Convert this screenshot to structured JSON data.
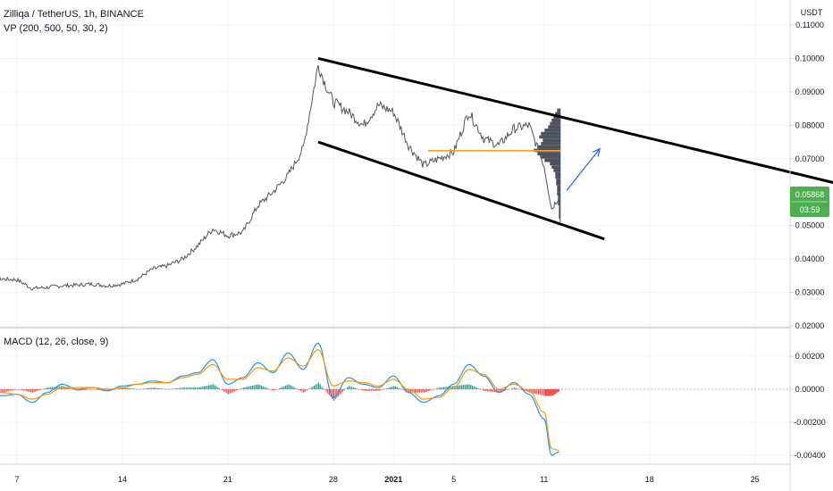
{
  "header": {
    "title": "Zilliqa / TetherUS, 1h, BINANCE",
    "vp_label": "VP (200, 500, 50, 30, 2)",
    "macd_label": "MACD (12, 26, close, 9)",
    "currency": "USDT"
  },
  "price_badge": {
    "value": "0.05868",
    "countdown": "03:59"
  },
  "colors": {
    "candle": "#555555",
    "channel": "#000000",
    "poc": "#f5a623",
    "vp": "#4c525e",
    "arrow": "#2962ff",
    "macd_line": "#2196f3",
    "signal_line": "#ff9800",
    "hist_pos": "#26a69a",
    "hist_neg": "#ef5350",
    "badge": "#4caf50"
  },
  "chart_data": [
    {
      "type": "line",
      "ylim": [
        0.02,
        0.11
      ],
      "price_ticks": [
        "0.11000",
        "0.10000",
        "0.09000",
        "0.08000",
        "0.07000",
        "0.05000",
        "0.04000",
        "0.03000",
        "0.02000"
      ],
      "x_ticks": [
        {
          "label": "7",
          "day": 7
        },
        {
          "label": "14",
          "day": 14
        },
        {
          "label": "21",
          "day": 21
        },
        {
          "label": "28",
          "day": 28
        },
        {
          "label": "2021",
          "day": 32
        },
        {
          "label": "5",
          "day": 36
        },
        {
          "label": "11",
          "day": 42
        },
        {
          "label": "18",
          "day": 49
        },
        {
          "label": "25",
          "day": 56
        }
      ],
      "series": [
        {
          "days": [
            4,
            5,
            6,
            7,
            8,
            9,
            10,
            11,
            12,
            13,
            14,
            15,
            16,
            17,
            18,
            19,
            20,
            21,
            22,
            23,
            24,
            25,
            26,
            27,
            27.5,
            28,
            29,
            30,
            31,
            32,
            33,
            34,
            35,
            36,
            37,
            38,
            39,
            40,
            41,
            42,
            42.5,
            43
          ],
          "close": [
            0.0345,
            0.0348,
            0.034,
            0.0338,
            0.0312,
            0.0315,
            0.032,
            0.0322,
            0.0325,
            0.032,
            0.0325,
            0.034,
            0.037,
            0.038,
            0.04,
            0.044,
            0.049,
            0.047,
            0.048,
            0.056,
            0.06,
            0.065,
            0.073,
            0.098,
            0.092,
            0.087,
            0.084,
            0.08,
            0.086,
            0.084,
            0.074,
            0.068,
            0.07,
            0.072,
            0.084,
            0.076,
            0.074,
            0.079,
            0.08,
            0.068,
            0.055,
            0.0587
          ]
        }
      ],
      "channel": {
        "upper": [
          {
            "day": 27,
            "price": 0.1
          },
          {
            "day": 62,
            "price": 0.062
          }
        ],
        "lower": [
          {
            "day": 27,
            "price": 0.075
          },
          {
            "day": 46,
            "price": 0.046
          }
        ]
      },
      "poc_price": 0.0724,
      "projection": [
        {
          "day": 43.5,
          "price": 0.0605
        },
        {
          "day": 45.7,
          "price": 0.073
        }
      ]
    },
    {
      "type": "line",
      "title": "MACD",
      "ylim": [
        -0.0045,
        0.0026
      ],
      "ticks": [
        "0.00200",
        "0.00000",
        "-0.00200",
        "-0.00400"
      ],
      "series": [
        {
          "name": "MACD",
          "days": [
            4,
            5,
            6,
            7,
            8,
            9,
            10,
            11,
            12,
            13,
            14,
            15,
            16,
            17,
            18,
            19,
            20,
            21,
            22,
            23,
            24,
            25,
            26,
            27,
            28,
            29,
            30,
            31,
            32,
            33,
            34,
            35,
            36,
            37,
            38,
            39,
            40,
            41,
            42,
            42.5,
            43
          ],
          "values": [
            0.0002,
            0.0004,
            -0.0004,
            -0.0003,
            -0.0008,
            -0.0002,
            0.0003,
            0.0,
            0.0001,
            -0.0001,
            0.0002,
            0.0003,
            0.0005,
            0.0004,
            0.0008,
            0.001,
            0.0018,
            0.0003,
            0.0007,
            0.0016,
            0.001,
            0.0022,
            0.0012,
            0.0028,
            -0.0005,
            0.0007,
            0.0003,
            0.0001,
            0.0008,
            -0.0002,
            -0.0008,
            -0.0004,
            0.0003,
            0.0015,
            0.0008,
            -0.0002,
            0.0004,
            -0.0003,
            -0.0018,
            -0.004,
            -0.0038
          ]
        },
        {
          "name": "Signal",
          "days": [
            4,
            5,
            6,
            7,
            8,
            9,
            10,
            11,
            12,
            13,
            14,
            15,
            16,
            17,
            18,
            19,
            20,
            21,
            22,
            23,
            24,
            25,
            26,
            27,
            28,
            29,
            30,
            31,
            32,
            33,
            34,
            35,
            36,
            37,
            38,
            39,
            40,
            41,
            42,
            42.5,
            43
          ],
          "values": [
            0.0001,
            0.0003,
            -0.0002,
            -0.0003,
            -0.0006,
            -0.0003,
            0.0001,
            0.0001,
            0.0001,
            0.0,
            0.0001,
            0.0003,
            0.0004,
            0.0004,
            0.0007,
            0.0009,
            0.0015,
            0.0006,
            0.0006,
            0.0013,
            0.0011,
            0.0019,
            0.0014,
            0.0024,
            0.0002,
            0.0005,
            0.0004,
            0.0002,
            0.0006,
            0.0,
            -0.0006,
            -0.0005,
            0.0001,
            0.0012,
            0.0009,
            0.0,
            0.0003,
            -0.0001,
            -0.0014,
            -0.0036,
            -0.0037
          ]
        }
      ],
      "histogram": [
        0.0001,
        0.0001,
        -0.0002,
        0.0,
        -0.0002,
        0.0001,
        0.0002,
        -0.0001,
        0.0,
        -0.0001,
        0.0001,
        0.0,
        0.0001,
        0.0,
        0.0001,
        0.0001,
        0.0003,
        -0.0003,
        0.0001,
        0.0003,
        -0.0001,
        0.0003,
        -0.0002,
        0.0004,
        -0.0007,
        0.0002,
        -0.0001,
        -0.0001,
        0.0002,
        -0.0002,
        -0.0002,
        0.0001,
        0.0002,
        0.0003,
        -0.0001,
        -0.0002,
        0.0001,
        -0.0002,
        -0.0004,
        -0.0004,
        -0.0001
      ]
    }
  ]
}
